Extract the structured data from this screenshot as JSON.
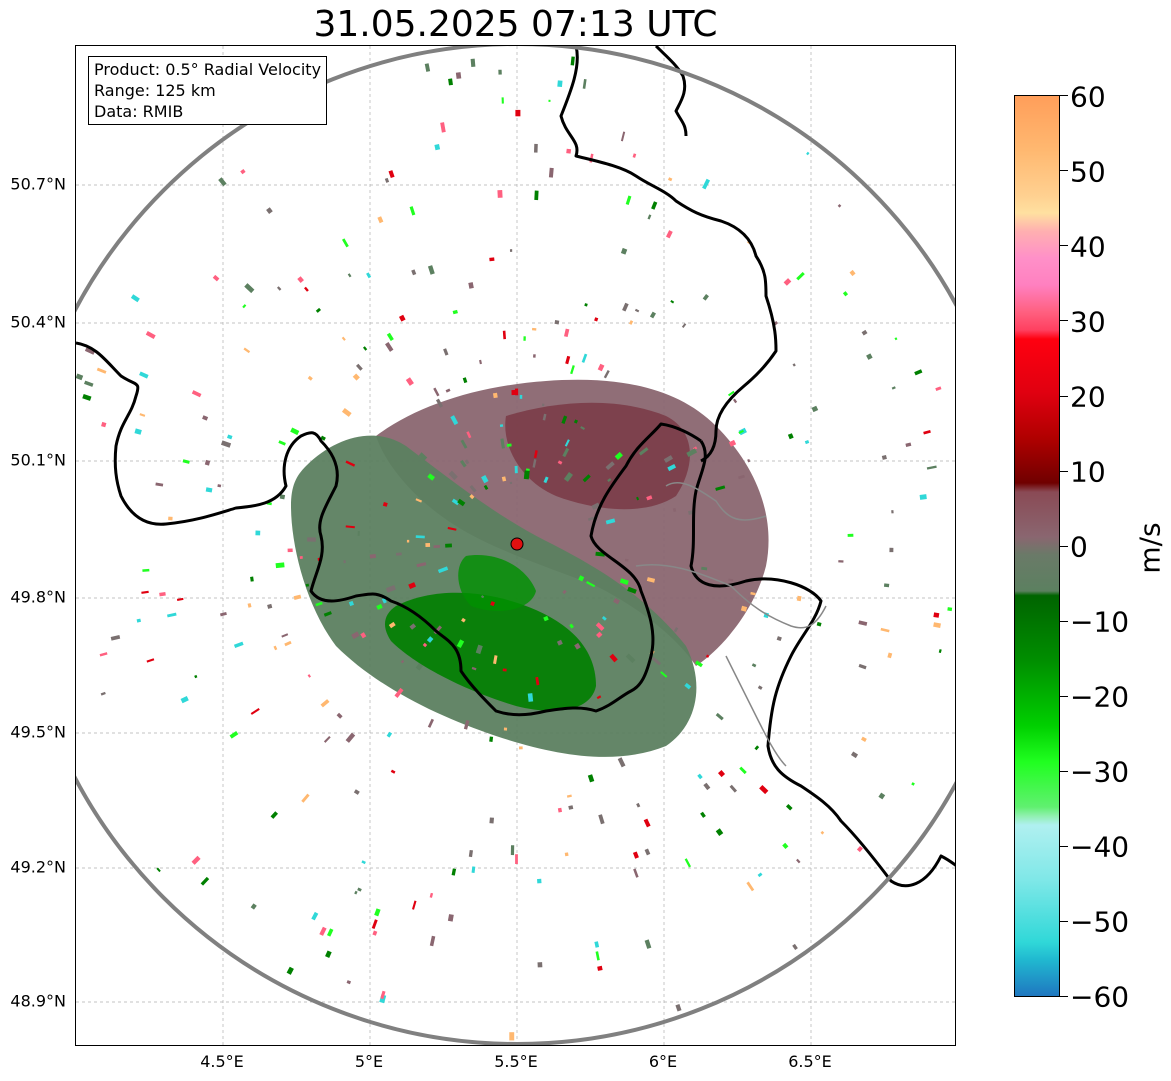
{
  "title": "31.05.2025 07:13 UTC",
  "info_box": {
    "product": "Product: 0.5° Radial Velocity",
    "range": "Range: 125 km",
    "source": "Data: RMIB"
  },
  "map": {
    "lat_ticks": [
      "50.7°N",
      "50.4°N",
      "50.1°N",
      "49.8°N",
      "49.5°N",
      "49.2°N",
      "48.9°N"
    ],
    "lon_ticks": [
      "4.5°E",
      "5°E",
      "5.5°E",
      "6°E",
      "6.5°E"
    ],
    "grid": true,
    "radar_site_color": "#e01010",
    "range_ring_color": "#808080",
    "border_color": "#000000"
  },
  "colorbar": {
    "unit": "m/s",
    "ticks": [
      "60",
      "50",
      "40",
      "30",
      "20",
      "10",
      "0",
      "−10",
      "−20",
      "−30",
      "−40",
      "−50",
      "−60"
    ],
    "range": [
      -60,
      60
    ],
    "colors": {
      "positive_high": "#ff9e5a",
      "positive_pink": "#ff8fc8",
      "positive_red": "#e00010",
      "positive_dark": "#700000",
      "near_zero_pos": "#8a6670",
      "near_zero_neg": "#5c8060",
      "negative_green": "#00b000",
      "negative_bright": "#20ff20",
      "negative_cyan": "#30d8d8",
      "negative_blue": "#1f77c0"
    }
  }
}
